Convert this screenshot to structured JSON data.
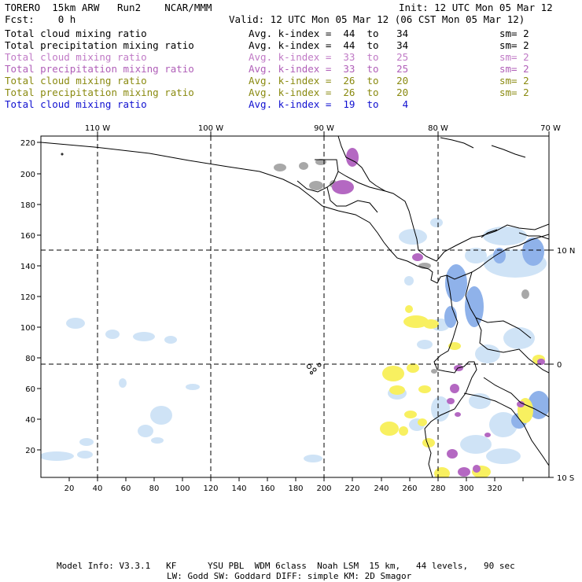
{
  "header": {
    "title_left": "TORERO  15km ARW   Run2    NCAR/MMM",
    "init": "Init: 12 UTC Mon 05 Mar 12",
    "fcst": "Fcst:    0 h",
    "valid": "Valid: 12 UTC Mon 05 Mar 12 (06 CST Mon 05 Mar 12)"
  },
  "legend": [
    {
      "field": "Total cloud mixing ratio",
      "kindex": "Avg. k-index =  44  to   34",
      "sm": "sm= 2",
      "color": "#000000"
    },
    {
      "field": "Total precipitation mixing ratio",
      "kindex": "Avg. k-index =  44  to   34",
      "sm": "sm= 2",
      "color": "#000000"
    },
    {
      "field": "Total cloud mixing ratio",
      "kindex": "Avg. k-index =  33  to   25",
      "sm": "sm= 2",
      "color": "#c07ac6"
    },
    {
      "field": "Total precipitation mixing ratio",
      "kindex": "Avg. k-index =  33  to   25",
      "sm": "sm= 2",
      "color": "#b05fb8"
    },
    {
      "field": "Total cloud mixing ratio",
      "kindex": "Avg. k-index =  26  to   20",
      "sm": "sm= 2",
      "color": "#8a8a10"
    },
    {
      "field": "Total precipitation mixing ratio",
      "kindex": "Avg. k-index =  26  to   20",
      "sm": "sm= 2",
      "color": "#8a8a10"
    },
    {
      "field": "Total cloud mixing ratio",
      "kindex": "Avg. k-index =  19  to    4",
      "sm": "",
      "color": "#1010d0"
    }
  ],
  "axes": {
    "top_lon_labels": [
      "110 W",
      "100 W",
      "90 W",
      "80 W",
      "70 W"
    ],
    "right_lat_labels": [
      "10 N",
      "0",
      "10 S"
    ],
    "y_ticks": [
      "220",
      "200",
      "180",
      "160",
      "140",
      "120",
      "100",
      "80",
      "60",
      "40",
      "20"
    ],
    "x_ticks": [
      "20",
      "40",
      "60",
      "80",
      "100",
      "120",
      "140",
      "160",
      "180",
      "200",
      "220",
      "240",
      "260",
      "280",
      "300",
      "320"
    ]
  },
  "colors": {
    "gray_cloud": "#a8a8a8",
    "purple_precip": "#b468c2",
    "yellow_cloud": "#f8f060",
    "lightblue_cloud": "#cfe3f6",
    "blue_cloud": "#8fb2ea"
  },
  "footer": {
    "line1": "Model Info: V3.3.1   KF      YSU PBL  WDM 6class  Noah LSM  15 km,   44 levels,   90 sec",
    "line2": "LW: Godd SW: Goddard DIFF: simple KM: 2D Smagor"
  }
}
